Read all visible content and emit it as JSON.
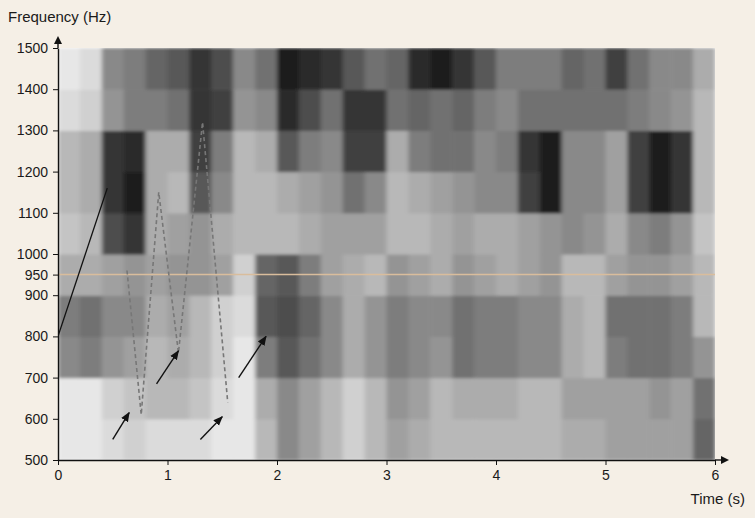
{
  "chart_data": {
    "type": "heatmap",
    "xlabel": "Time (s)",
    "ylabel": "Frequency (Hz)",
    "xlim": [
      0,
      6
    ],
    "ylim": [
      500,
      1500
    ],
    "xticks": [
      0,
      1,
      2,
      3,
      4,
      5,
      6
    ],
    "yticks": [
      500,
      600,
      700,
      800,
      900,
      950,
      1000,
      1100,
      1200,
      1300,
      1400,
      1500
    ],
    "time_bins": [
      0,
      0.2,
      0.4,
      0.6,
      0.8,
      1,
      1.2,
      1.4,
      1.6,
      1.8,
      2,
      2.2,
      2.4,
      2.6,
      2.8,
      3,
      3.2,
      3.4,
      3.6,
      3.8,
      4,
      4.2,
      4.4,
      4.6,
      4.8,
      5,
      5.2,
      5.4,
      5.6,
      5.8,
      6
    ],
    "frequency_bins": [
      500,
      600,
      700,
      800,
      900,
      1000,
      1100,
      1200,
      1300,
      1400,
      1500
    ],
    "clim": [
      0,
      1
    ],
    "color": [
      "#ffffff",
      "#121212"
    ],
    "cells": [
      [
        0.1,
        0.1,
        0.5,
        0.55,
        0.35,
        0.25,
        0.3,
        0.3,
        0.15,
        0.1
      ],
      [
        0.1,
        0.1,
        0.55,
        0.6,
        0.35,
        0.3,
        0.35,
        0.35,
        0.2,
        0.15
      ],
      [
        0.15,
        0.2,
        0.45,
        0.5,
        0.4,
        0.75,
        0.85,
        0.85,
        0.45,
        0.5
      ],
      [
        0.2,
        0.25,
        0.4,
        0.5,
        0.45,
        0.85,
        0.95,
        0.9,
        0.55,
        0.55
      ],
      [
        0.15,
        0.3,
        0.3,
        0.35,
        0.4,
        0.35,
        0.35,
        0.35,
        0.55,
        0.65
      ],
      [
        0.15,
        0.3,
        0.35,
        0.4,
        0.45,
        0.4,
        0.3,
        0.35,
        0.6,
        0.7
      ],
      [
        0.15,
        0.25,
        0.3,
        0.3,
        0.45,
        0.45,
        0.7,
        0.8,
        0.85,
        0.85
      ],
      [
        0.1,
        0.15,
        0.2,
        0.2,
        0.4,
        0.35,
        0.5,
        0.55,
        0.8,
        0.75
      ],
      [
        0.1,
        0.1,
        0.1,
        0.15,
        0.2,
        0.3,
        0.3,
        0.3,
        0.45,
        0.5
      ],
      [
        0.3,
        0.35,
        0.55,
        0.7,
        0.65,
        0.3,
        0.3,
        0.35,
        0.5,
        0.6
      ],
      [
        0.5,
        0.5,
        0.7,
        0.75,
        0.7,
        0.3,
        0.35,
        0.7,
        0.9,
        0.95
      ],
      [
        0.4,
        0.4,
        0.6,
        0.65,
        0.55,
        0.35,
        0.4,
        0.55,
        0.75,
        0.9
      ],
      [
        0.3,
        0.3,
        0.5,
        0.5,
        0.4,
        0.4,
        0.45,
        0.5,
        0.6,
        0.85
      ],
      [
        0.2,
        0.2,
        0.35,
        0.35,
        0.35,
        0.4,
        0.6,
        0.8,
        0.85,
        0.7
      ],
      [
        0.3,
        0.3,
        0.45,
        0.45,
        0.3,
        0.4,
        0.5,
        0.8,
        0.85,
        0.6
      ],
      [
        0.4,
        0.45,
        0.55,
        0.55,
        0.45,
        0.3,
        0.3,
        0.35,
        0.6,
        0.65
      ],
      [
        0.35,
        0.4,
        0.5,
        0.5,
        0.4,
        0.3,
        0.35,
        0.55,
        0.65,
        0.9
      ],
      [
        0.3,
        0.3,
        0.45,
        0.5,
        0.35,
        0.35,
        0.4,
        0.6,
        0.6,
        0.95
      ],
      [
        0.3,
        0.35,
        0.6,
        0.6,
        0.45,
        0.4,
        0.45,
        0.6,
        0.65,
        0.85
      ],
      [
        0.3,
        0.35,
        0.55,
        0.55,
        0.4,
        0.35,
        0.5,
        0.5,
        0.55,
        0.7
      ],
      [
        0.3,
        0.35,
        0.55,
        0.55,
        0.35,
        0.35,
        0.5,
        0.55,
        0.5,
        0.55
      ],
      [
        0.3,
        0.3,
        0.5,
        0.5,
        0.4,
        0.4,
        0.8,
        0.85,
        0.6,
        0.55
      ],
      [
        0.3,
        0.3,
        0.5,
        0.5,
        0.45,
        0.45,
        0.95,
        0.95,
        0.6,
        0.55
      ],
      [
        0.35,
        0.4,
        0.35,
        0.35,
        0.3,
        0.5,
        0.5,
        0.5,
        0.6,
        0.65
      ],
      [
        0.35,
        0.4,
        0.3,
        0.3,
        0.3,
        0.45,
        0.5,
        0.5,
        0.6,
        0.6
      ],
      [
        0.4,
        0.4,
        0.55,
        0.6,
        0.4,
        0.35,
        0.4,
        0.4,
        0.6,
        0.8
      ],
      [
        0.4,
        0.4,
        0.6,
        0.6,
        0.45,
        0.5,
        0.8,
        0.8,
        0.55,
        0.6
      ],
      [
        0.4,
        0.45,
        0.6,
        0.6,
        0.45,
        0.55,
        0.95,
        0.95,
        0.5,
        0.5
      ],
      [
        0.4,
        0.4,
        0.55,
        0.55,
        0.4,
        0.45,
        0.85,
        0.85,
        0.45,
        0.5
      ],
      [
        0.65,
        0.6,
        0.45,
        0.3,
        0.3,
        0.25,
        0.3,
        0.3,
        0.3,
        0.35
      ]
    ],
    "reference_lines": [
      {
        "y": 950,
        "color": "#d9bd9c"
      }
    ],
    "lines": [
      {
        "x": [
          0,
          0.45
        ],
        "y": [
          800,
          1160
        ],
        "line_style": "solid",
        "color": "#111111"
      },
      {
        "x": [
          0.63,
          0.76,
          0.92,
          1.1,
          1.32,
          1.55
        ],
        "y": [
          960,
          610,
          1150,
          760,
          1320,
          640
        ],
        "line_style": "dashed",
        "color": "#777777"
      }
    ],
    "arrows": [
      {
        "x": [
          0.5,
          0.65
        ],
        "y": [
          550,
          615
        ]
      },
      {
        "x": [
          0.9,
          1.1
        ],
        "y": [
          685,
          765
        ]
      },
      {
        "x": [
          1.3,
          1.5
        ],
        "y": [
          550,
          605
        ]
      },
      {
        "x": [
          1.65,
          1.9
        ],
        "y": [
          700,
          800
        ]
      }
    ]
  }
}
